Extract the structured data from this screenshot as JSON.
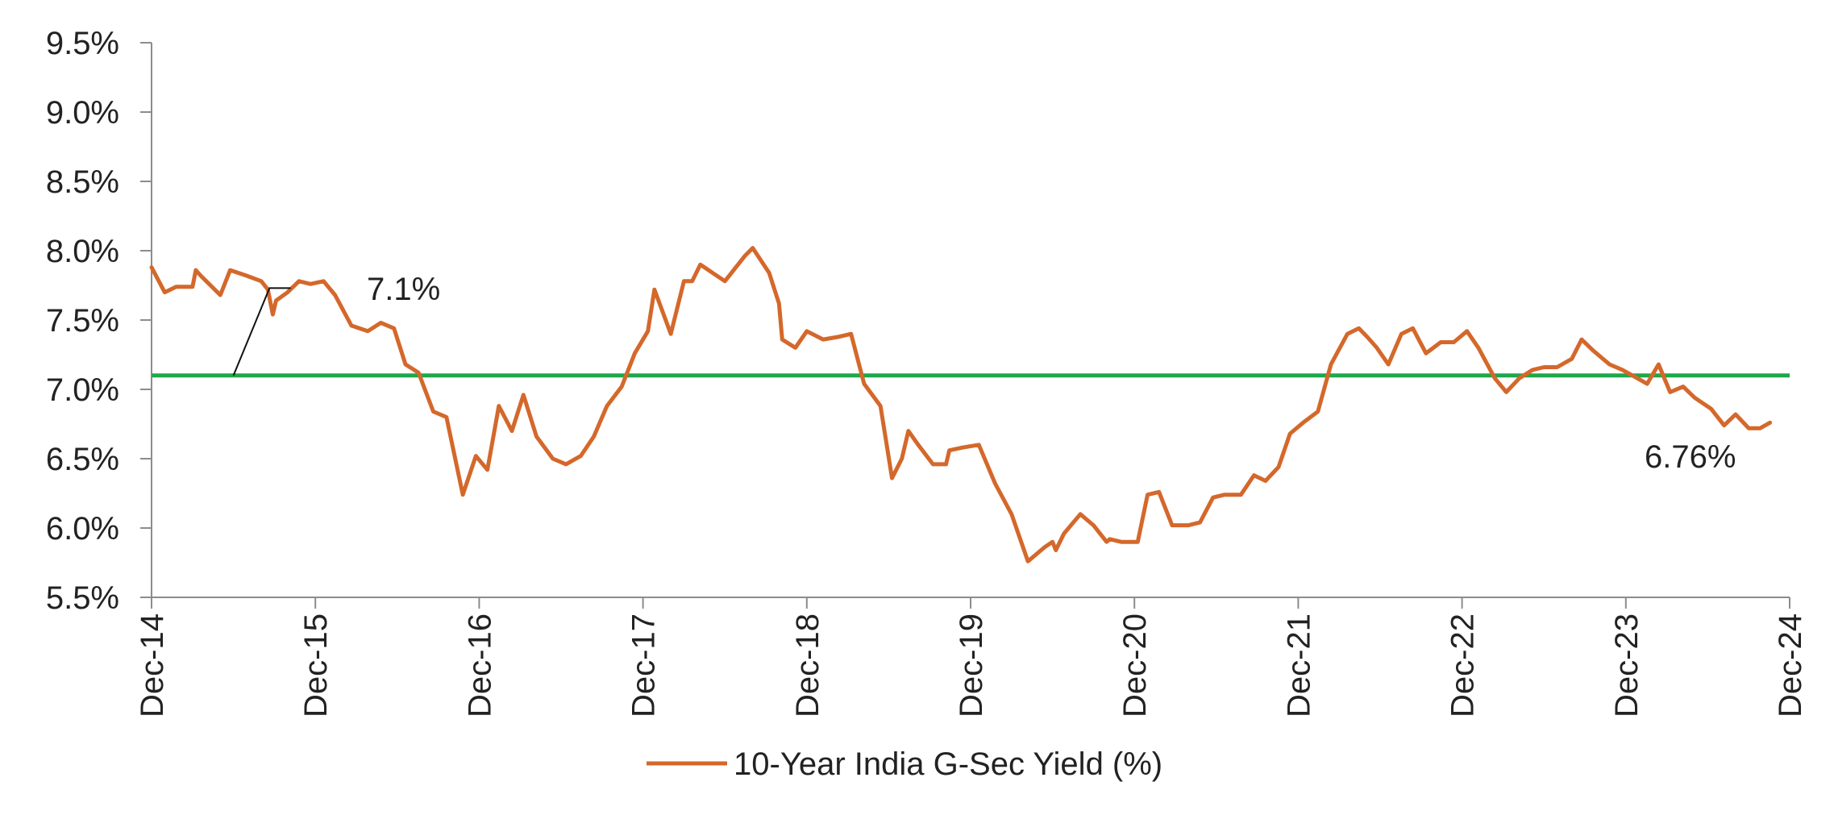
{
  "chart_data": {
    "type": "line",
    "title": "",
    "xlabel": "",
    "ylabel": "",
    "ylim": [
      5.5,
      9.5
    ],
    "y_ticks": [
      {
        "value": 5.5,
        "label": "5.5%"
      },
      {
        "value": 6.0,
        "label": "6.0%"
      },
      {
        "value": 6.5,
        "label": "6.5%"
      },
      {
        "value": 7.0,
        "label": "7.0%"
      },
      {
        "value": 7.5,
        "label": "7.5%"
      },
      {
        "value": 8.0,
        "label": "8.0%"
      },
      {
        "value": 8.5,
        "label": "8.5%"
      },
      {
        "value": 9.0,
        "label": "9.0%"
      },
      {
        "value": 9.5,
        "label": "9.5%"
      }
    ],
    "x_ticks": [
      "Dec-14",
      "Dec-15",
      "Dec-16",
      "Dec-17",
      "Dec-18",
      "Dec-19",
      "Dec-20",
      "Dec-21",
      "Dec-22",
      "Dec-23",
      "Dec-24"
    ],
    "grid": false,
    "legend_position": "bottom",
    "series": [
      {
        "name": "10-Year India G-Sec Yield (%)",
        "color": "#D4682B",
        "points": [
          [
            0.0,
            7.88
          ],
          [
            0.08,
            7.7
          ],
          [
            0.15,
            7.74
          ],
          [
            0.25,
            7.74
          ],
          [
            0.27,
            7.86
          ],
          [
            0.3,
            7.82
          ],
          [
            0.42,
            7.68
          ],
          [
            0.48,
            7.86
          ],
          [
            0.58,
            7.82
          ],
          [
            0.67,
            7.78
          ],
          [
            0.71,
            7.72
          ],
          [
            0.74,
            7.54
          ],
          [
            0.76,
            7.64
          ],
          [
            0.83,
            7.7
          ],
          [
            0.9,
            7.78
          ],
          [
            0.97,
            7.76
          ],
          [
            1.05,
            7.78
          ],
          [
            1.12,
            7.68
          ],
          [
            1.22,
            7.46
          ],
          [
            1.32,
            7.42
          ],
          [
            1.4,
            7.48
          ],
          [
            1.48,
            7.44
          ],
          [
            1.55,
            7.18
          ],
          [
            1.63,
            7.12
          ],
          [
            1.72,
            6.84
          ],
          [
            1.8,
            6.8
          ],
          [
            1.9,
            6.24
          ],
          [
            1.98,
            6.52
          ],
          [
            2.05,
            6.42
          ],
          [
            2.12,
            6.88
          ],
          [
            2.2,
            6.7
          ],
          [
            2.27,
            6.96
          ],
          [
            2.35,
            6.66
          ],
          [
            2.45,
            6.5
          ],
          [
            2.53,
            6.46
          ],
          [
            2.62,
            6.52
          ],
          [
            2.7,
            6.66
          ],
          [
            2.78,
            6.88
          ],
          [
            2.87,
            7.02
          ],
          [
            2.95,
            7.26
          ],
          [
            3.03,
            7.42
          ],
          [
            3.07,
            7.72
          ],
          [
            3.17,
            7.4
          ],
          [
            3.25,
            7.78
          ],
          [
            3.3,
            7.78
          ],
          [
            3.35,
            7.9
          ],
          [
            3.4,
            7.86
          ],
          [
            3.5,
            7.78
          ],
          [
            3.62,
            7.96
          ],
          [
            3.67,
            8.02
          ],
          [
            3.77,
            7.84
          ],
          [
            3.83,
            7.62
          ],
          [
            3.85,
            7.36
          ],
          [
            3.93,
            7.3
          ],
          [
            4.0,
            7.42
          ],
          [
            4.1,
            7.36
          ],
          [
            4.2,
            7.38
          ],
          [
            4.27,
            7.4
          ],
          [
            4.35,
            7.04
          ],
          [
            4.45,
            6.88
          ],
          [
            4.52,
            6.36
          ],
          [
            4.58,
            6.5
          ],
          [
            4.62,
            6.7
          ],
          [
            4.68,
            6.6
          ],
          [
            4.77,
            6.46
          ],
          [
            4.85,
            6.46
          ],
          [
            4.87,
            6.56
          ],
          [
            4.95,
            6.58
          ],
          [
            5.05,
            6.6
          ],
          [
            5.15,
            6.32
          ],
          [
            5.25,
            6.1
          ],
          [
            5.35,
            5.76
          ],
          [
            5.45,
            5.86
          ],
          [
            5.5,
            5.9
          ],
          [
            5.52,
            5.84
          ],
          [
            5.57,
            5.96
          ],
          [
            5.67,
            6.1
          ],
          [
            5.75,
            6.02
          ],
          [
            5.83,
            5.9
          ],
          [
            5.85,
            5.92
          ],
          [
            5.92,
            5.9
          ],
          [
            6.02,
            5.9
          ],
          [
            6.08,
            6.24
          ],
          [
            6.15,
            6.26
          ],
          [
            6.23,
            6.02
          ],
          [
            6.33,
            6.02
          ],
          [
            6.4,
            6.04
          ],
          [
            6.48,
            6.22
          ],
          [
            6.55,
            6.24
          ],
          [
            6.65,
            6.24
          ],
          [
            6.73,
            6.38
          ],
          [
            6.8,
            6.34
          ],
          [
            6.88,
            6.44
          ],
          [
            6.95,
            6.68
          ],
          [
            7.03,
            6.76
          ],
          [
            7.12,
            6.84
          ],
          [
            7.2,
            7.18
          ],
          [
            7.3,
            7.4
          ],
          [
            7.37,
            7.44
          ],
          [
            7.42,
            7.38
          ],
          [
            7.48,
            7.3
          ],
          [
            7.55,
            7.18
          ],
          [
            7.63,
            7.4
          ],
          [
            7.7,
            7.44
          ],
          [
            7.78,
            7.26
          ],
          [
            7.87,
            7.34
          ],
          [
            7.95,
            7.34
          ],
          [
            8.03,
            7.42
          ],
          [
            8.1,
            7.3
          ],
          [
            8.2,
            7.08
          ],
          [
            8.27,
            6.98
          ],
          [
            8.35,
            7.08
          ],
          [
            8.43,
            7.14
          ],
          [
            8.5,
            7.16
          ],
          [
            8.58,
            7.16
          ],
          [
            8.67,
            7.22
          ],
          [
            8.73,
            7.36
          ],
          [
            8.8,
            7.28
          ],
          [
            8.9,
            7.18
          ],
          [
            8.98,
            7.14
          ],
          [
            9.07,
            7.08
          ],
          [
            9.13,
            7.04
          ],
          [
            9.2,
            7.18
          ],
          [
            9.27,
            6.98
          ],
          [
            9.35,
            7.02
          ],
          [
            9.42,
            6.94
          ],
          [
            9.52,
            6.86
          ],
          [
            9.6,
            6.74
          ],
          [
            9.67,
            6.82
          ],
          [
            9.75,
            6.72
          ],
          [
            9.82,
            6.72
          ],
          [
            9.88,
            6.76
          ]
        ]
      }
    ],
    "reference_line": {
      "value": 7.1,
      "color": "#1EA84A",
      "label": "7.1%"
    },
    "annotations": [
      {
        "text": "7.1%"
      },
      {
        "text": "6.76%"
      }
    ]
  }
}
